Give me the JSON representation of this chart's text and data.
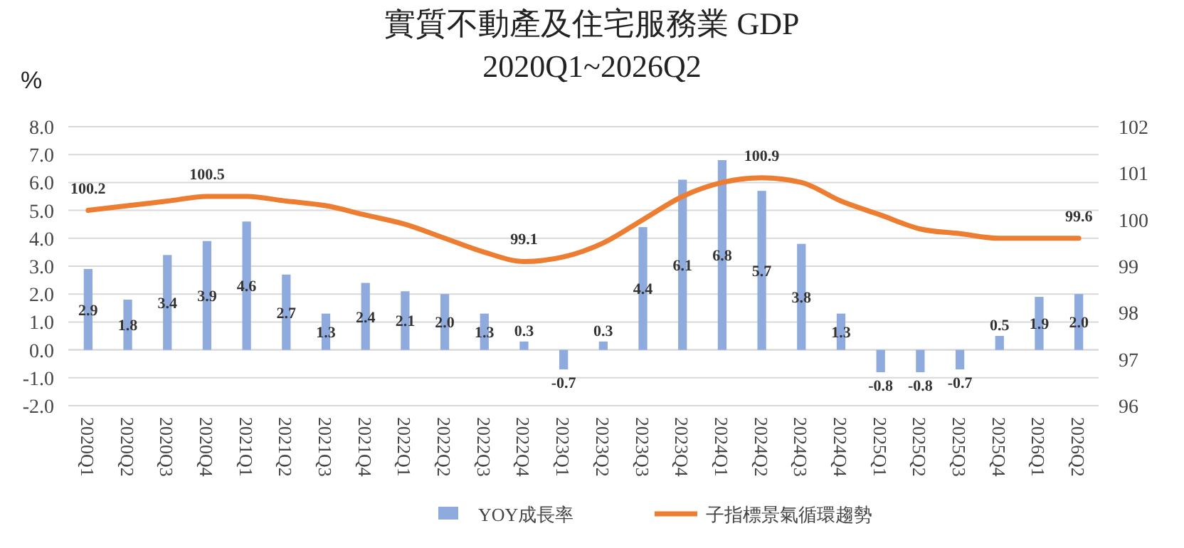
{
  "chart_data": {
    "type": "bar",
    "title": "實質不動產及住宅服務業  GDP",
    "subtitle": "2020Q1~2026Q2",
    "ylabel": "%",
    "categories": [
      "2020Q1",
      "2020Q2",
      "2020Q3",
      "2020Q4",
      "2021Q1",
      "2021Q2",
      "2021Q3",
      "2021Q4",
      "2022Q1",
      "2022Q2",
      "2022Q3",
      "2022Q4",
      "2023Q1",
      "2023Q2",
      "2023Q3",
      "2023Q4",
      "2024Q1",
      "2024Q2",
      "2024Q3",
      "2024Q4",
      "2025Q1",
      "2025Q2",
      "2025Q3",
      "2025Q4",
      "2026Q1",
      "2026Q2"
    ],
    "series": [
      {
        "name": "YOY成長率",
        "color": "#8faadc",
        "values": [
          2.9,
          1.8,
          3.4,
          3.9,
          4.6,
          2.7,
          1.3,
          2.4,
          2.1,
          2.0,
          1.3,
          0.3,
          -0.7,
          0.3,
          4.4,
          6.1,
          6.8,
          5.7,
          3.8,
          1.3,
          -0.8,
          -0.8,
          -0.7,
          0.5,
          1.9,
          2.0
        ],
        "value_labels": [
          "2.9",
          "1.8",
          "3.4",
          "3.9",
          "4.6",
          "2.7",
          "1.3",
          "2.4",
          "2.1",
          "2.0",
          "1.3",
          "0.3",
          "-0.7",
          "0.3",
          "4.4",
          "6.1",
          "6.8",
          "5.7",
          "3.8",
          "1.3",
          "-0.8",
          "-0.8",
          "-0.7",
          "0.5",
          "1.9",
          "2.0"
        ]
      },
      {
        "name": "子指標景氣循環趨勢",
        "type": "line",
        "axis": "y2",
        "color": "#ed7d31",
        "values": [
          100.2,
          100.3,
          100.4,
          100.5,
          100.5,
          100.4,
          100.3,
          100.1,
          99.9,
          99.6,
          99.3,
          99.1,
          99.2,
          99.5,
          100.0,
          100.5,
          100.8,
          100.9,
          100.8,
          100.4,
          100.1,
          99.8,
          99.7,
          99.6,
          99.6,
          99.6
        ],
        "value_labels": [
          "100.2",
          null,
          null,
          "100.5",
          null,
          null,
          null,
          null,
          null,
          null,
          null,
          "99.1",
          null,
          null,
          null,
          null,
          null,
          "100.9",
          null,
          null,
          null,
          null,
          null,
          null,
          null,
          "99.6"
        ]
      }
    ],
    "ylim": [
      -2,
      8
    ],
    "yticks": [
      {
        "value": -2,
        "label": "-2.0"
      },
      {
        "value": -1,
        "label": "-1.0"
      },
      {
        "value": 0,
        "label": "0.0"
      },
      {
        "value": 1,
        "label": "1.0"
      },
      {
        "value": 2,
        "label": "2.0"
      },
      {
        "value": 3,
        "label": "3.0"
      },
      {
        "value": 4,
        "label": "4.0"
      },
      {
        "value": 5,
        "label": "5.0"
      },
      {
        "value": 6,
        "label": "6.0"
      },
      {
        "value": 7,
        "label": "7.0"
      },
      {
        "value": 8,
        "label": "8.0"
      }
    ],
    "y2lim": [
      96,
      102
    ],
    "y2ticks": [
      96,
      97,
      98,
      99,
      100,
      101,
      102
    ],
    "grid": "y",
    "legend": "bottom"
  }
}
